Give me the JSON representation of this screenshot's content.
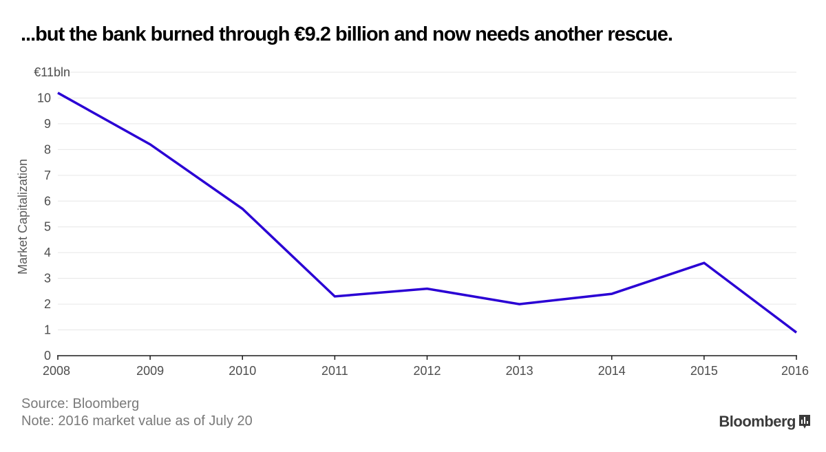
{
  "chart_data": {
    "type": "line",
    "title": "...but the bank burned through €9.2 billion and now needs another rescue.",
    "ylabel": "Market Capitalization",
    "xlabel": "",
    "x": [
      "2008",
      "2009",
      "2010",
      "2011",
      "2012",
      "2013",
      "2014",
      "2015",
      "2016"
    ],
    "series": [
      {
        "name": "Market Capitalization",
        "values": [
          10.2,
          8.2,
          5.7,
          2.3,
          2.6,
          2.0,
          2.4,
          3.6,
          0.9
        ]
      }
    ],
    "ylim": [
      0,
      11
    ],
    "yticks": [
      "0",
      "1",
      "2",
      "3",
      "4",
      "5",
      "6",
      "7",
      "8",
      "9",
      "10",
      "€11bln"
    ],
    "grid": true,
    "line_color": "#2a00d4",
    "grid_color": "#e6e6e6",
    "axis_color": "#1a1a1a"
  },
  "footer": {
    "source": "Source: Bloomberg",
    "note": "Note: 2016 market value as of July 20"
  },
  "brand": {
    "name": "Bloomberg",
    "icon": "bloomberg-chart-icon"
  }
}
